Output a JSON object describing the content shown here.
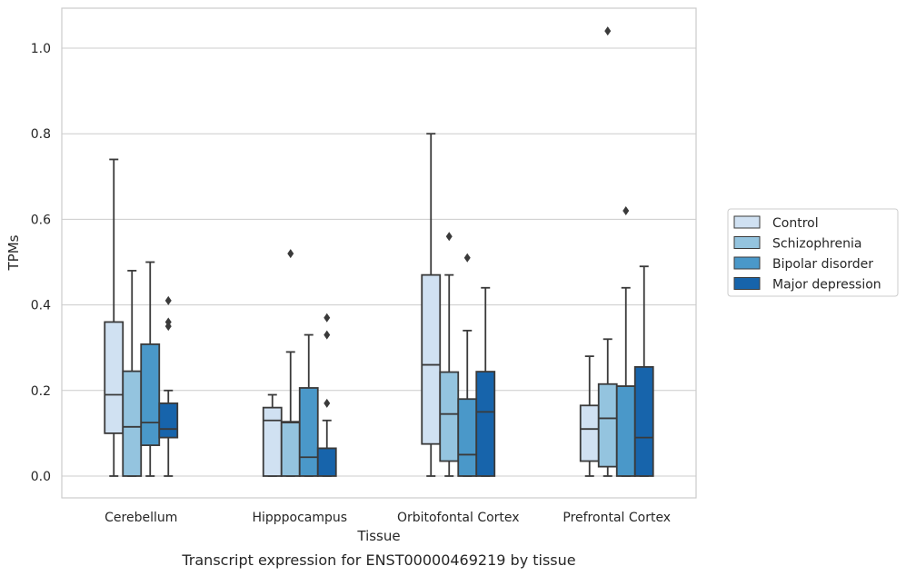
{
  "chart_data": {
    "type": "box",
    "caption": "Transcript expression for ENST00000469219 by tissue",
    "xlabel": "Tissue",
    "ylabel": "TPMs",
    "ylim": [
      -0.05,
      1.09
    ],
    "yticks": [
      "0.0",
      "0.2",
      "0.4",
      "0.6",
      "0.8",
      "1.0"
    ],
    "grid": true,
    "legend_position": "right",
    "categories": [
      "Cerebellum",
      "Hipppocampus",
      "Orbitofontal Cortex",
      "Prefrontal Cortex"
    ],
    "series": [
      {
        "name": "Control",
        "color": "#d0e1f2",
        "boxes": [
          {
            "whislo": 0.0,
            "q1": 0.1,
            "med": 0.19,
            "q3": 0.36,
            "whishi": 0.74,
            "fliers": []
          },
          {
            "whislo": 0.0,
            "q1": 0.0,
            "med": 0.13,
            "q3": 0.16,
            "whishi": 0.19,
            "fliers": []
          },
          {
            "whislo": 0.0,
            "q1": 0.075,
            "med": 0.26,
            "q3": 0.47,
            "whishi": 0.8,
            "fliers": []
          },
          {
            "whislo": 0.0,
            "q1": 0.035,
            "med": 0.11,
            "q3": 0.165,
            "whishi": 0.28,
            "fliers": []
          }
        ]
      },
      {
        "name": "Schizophrenia",
        "color": "#94c4df",
        "boxes": [
          {
            "whislo": 0.0,
            "q1": 0.0,
            "med": 0.115,
            "q3": 0.245,
            "whishi": 0.48,
            "fliers": []
          },
          {
            "whislo": 0.0,
            "q1": 0.0,
            "med": 0.125,
            "q3": 0.127,
            "whishi": 0.29,
            "fliers": [
              0.52
            ]
          },
          {
            "whislo": 0.0,
            "q1": 0.035,
            "med": 0.145,
            "q3": 0.243,
            "whishi": 0.47,
            "fliers": [
              0.56
            ]
          },
          {
            "whislo": 0.0,
            "q1": 0.022,
            "med": 0.135,
            "q3": 0.215,
            "whishi": 0.32,
            "fliers": [
              1.04
            ]
          }
        ]
      },
      {
        "name": "Bipolar disorder",
        "color": "#4a98c9",
        "boxes": [
          {
            "whislo": 0.0,
            "q1": 0.072,
            "med": 0.125,
            "q3": 0.308,
            "whishi": 0.5,
            "fliers": []
          },
          {
            "whislo": 0.0,
            "q1": 0.0,
            "med": 0.044,
            "q3": 0.206,
            "whishi": 0.33,
            "fliers": []
          },
          {
            "whislo": 0.0,
            "q1": 0.0,
            "med": 0.05,
            "q3": 0.18,
            "whishi": 0.34,
            "fliers": [
              0.51
            ]
          },
          {
            "whislo": 0.0,
            "q1": 0.0,
            "med": 0.21,
            "q3": 0.21,
            "whishi": 0.44,
            "fliers": [
              0.62
            ]
          }
        ]
      },
      {
        "name": "Major depression",
        "color": "#1764ab",
        "boxes": [
          {
            "whislo": 0.0,
            "q1": 0.09,
            "med": 0.11,
            "q3": 0.17,
            "whishi": 0.2,
            "fliers": [
              0.35,
              0.36,
              0.41
            ]
          },
          {
            "whislo": 0.0,
            "q1": 0.0,
            "med": 0.065,
            "q3": 0.065,
            "whishi": 0.13,
            "fliers": [
              0.17,
              0.33,
              0.37
            ]
          },
          {
            "whislo": 0.0,
            "q1": 0.0,
            "med": 0.15,
            "q3": 0.244,
            "whishi": 0.44,
            "fliers": []
          },
          {
            "whislo": 0.0,
            "q1": 0.0,
            "med": 0.09,
            "q3": 0.255,
            "whishi": 0.49,
            "fliers": []
          }
        ]
      }
    ]
  }
}
